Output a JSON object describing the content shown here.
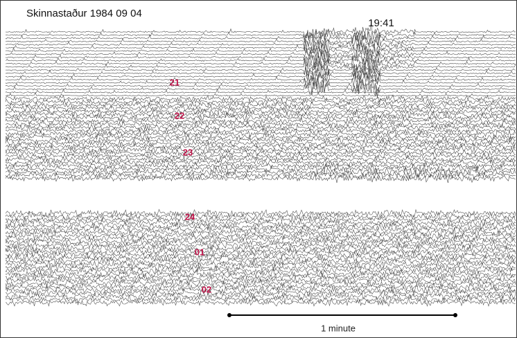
{
  "header": {
    "title": "Skinnastaður 1984 09 04",
    "time": "19:41"
  },
  "hour_marks": [
    "21",
    "22",
    "23",
    "24",
    "01",
    "02"
  ],
  "scale_bar": {
    "label": "1 minute"
  }
}
